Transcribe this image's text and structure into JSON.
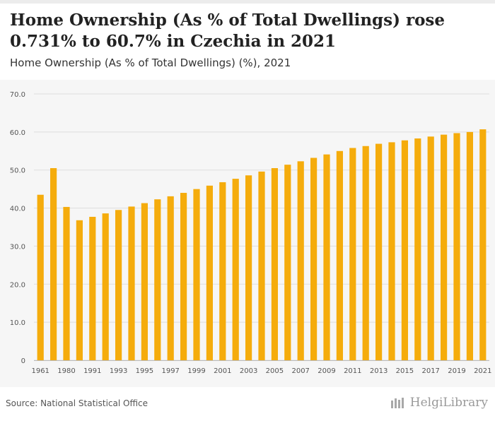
{
  "header": {
    "title": "Home Ownership (As % of Total Dwellings) rose 0.731% to 60.7% in Czechia in 2021",
    "subtitle": "Home Ownership (As % of Total Dwellings) (%), 2021"
  },
  "footer": {
    "source": "Source: National Statistical Office",
    "logo_text": "HelgiLibrary"
  },
  "colors": {
    "bar": "#f5ac0c",
    "grid": "#dddddd",
    "tick_text": "#555555"
  },
  "chart_data": {
    "type": "bar",
    "title": "Home Ownership (As % of Total Dwellings) rose 0.731% to 60.7% in Czechia in 2021",
    "subtitle": "Home Ownership (As % of Total Dwellings) (%), 2021",
    "xlabel": "",
    "ylabel": "",
    "ylim": [
      0,
      70
    ],
    "yticks": [
      "0",
      "10.0",
      "20.0",
      "30.0",
      "40.0",
      "50.0",
      "60.0",
      "70.0"
    ],
    "xtick_labels": [
      "1961",
      "1980",
      "1991",
      "1993",
      "1995",
      "1997",
      "1999",
      "2001",
      "2003",
      "2005",
      "2007",
      "2009",
      "2011",
      "2013",
      "2015",
      "2017",
      "2019",
      "2021"
    ],
    "grid": true,
    "categories": [
      "1961",
      "1970",
      "1980",
      "1990",
      "1991",
      "1992",
      "1993",
      "1994",
      "1995",
      "1996",
      "1997",
      "1998",
      "1999",
      "2000",
      "2001",
      "2002",
      "2003",
      "2004",
      "2005",
      "2006",
      "2007",
      "2008",
      "2009",
      "2010",
      "2011",
      "2012",
      "2013",
      "2014",
      "2015",
      "2016",
      "2017",
      "2018",
      "2019",
      "2020",
      "2021"
    ],
    "values": [
      43.5,
      50.5,
      40.3,
      36.8,
      37.7,
      38.6,
      39.5,
      40.4,
      41.3,
      42.3,
      43.1,
      44.0,
      45.0,
      45.9,
      46.8,
      47.7,
      48.6,
      49.6,
      50.5,
      51.4,
      52.3,
      53.2,
      54.1,
      55.0,
      55.8,
      56.3,
      56.9,
      57.3,
      57.8,
      58.3,
      58.8,
      59.3,
      59.7,
      60.0,
      60.7
    ]
  }
}
